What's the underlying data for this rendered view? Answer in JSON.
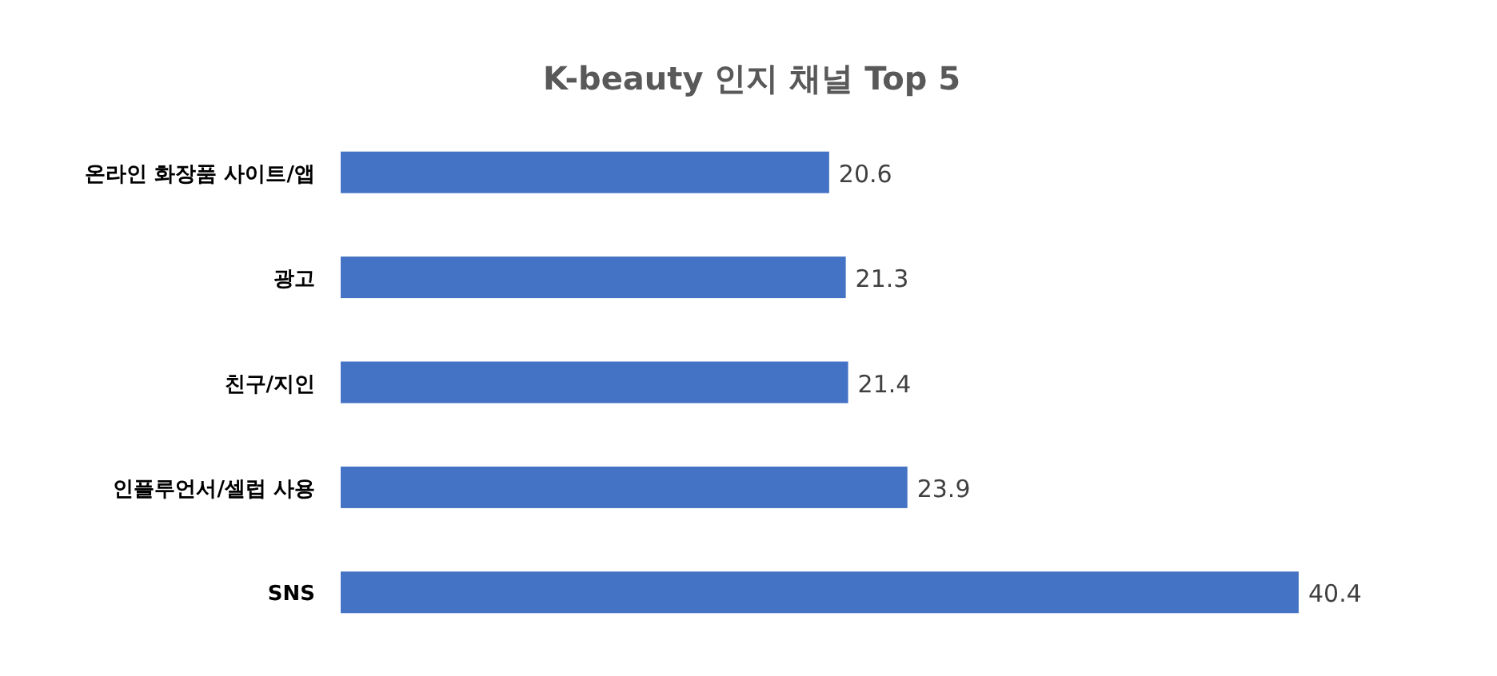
{
  "chart_data": {
    "type": "bar",
    "orientation": "horizontal",
    "title": "K-beauty 인지 채널 Top 5",
    "categories": [
      "온라인 화장품 사이트/앱",
      "광고",
      "친구/지인",
      "인플루언서/셀럽 사용",
      "SNS"
    ],
    "values": [
      20.6,
      21.3,
      21.4,
      23.9,
      40.4
    ],
    "color": "#4472c4",
    "data_labels": true
  }
}
